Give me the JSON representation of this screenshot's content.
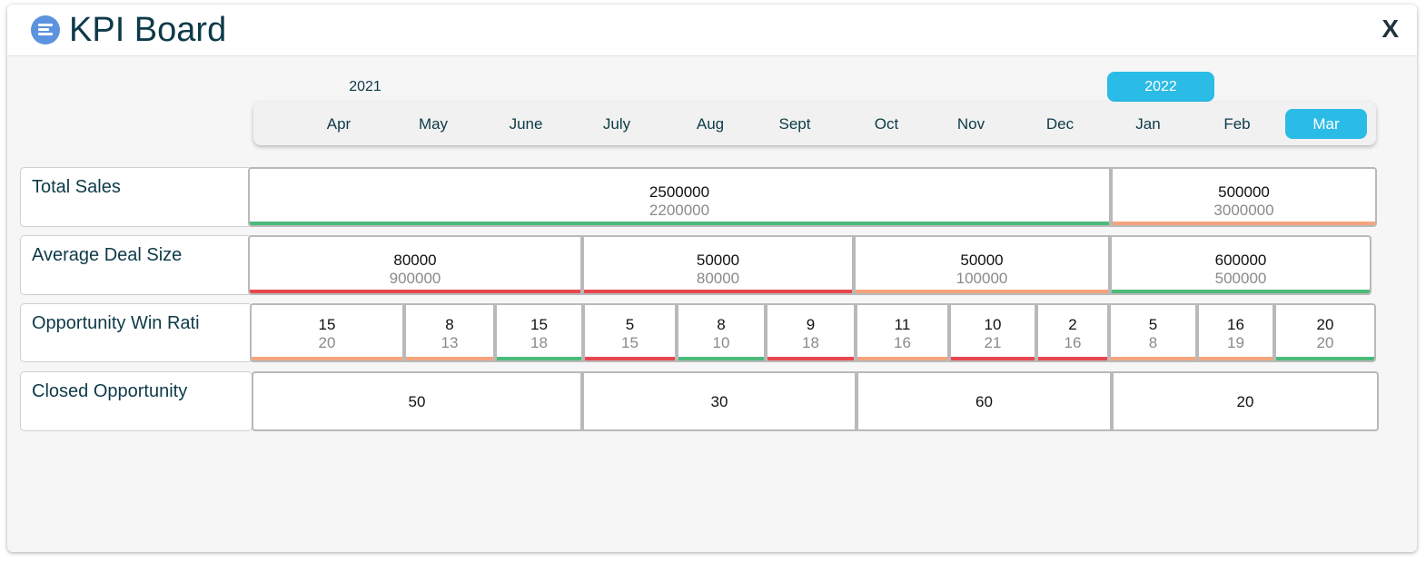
{
  "header": {
    "title": "KPI Board",
    "close_label": "X"
  },
  "years": [
    {
      "label": "2021",
      "active": false
    },
    {
      "label": "2022",
      "active": true
    }
  ],
  "months": [
    {
      "label": "Apr",
      "active": false
    },
    {
      "label": "May",
      "active": false
    },
    {
      "label": "June",
      "active": false
    },
    {
      "label": "July",
      "active": false
    },
    {
      "label": "Aug",
      "active": false
    },
    {
      "label": "Sept",
      "active": false
    },
    {
      "label": "Oct",
      "active": false
    },
    {
      "label": "Nov",
      "active": false
    },
    {
      "label": "Dec",
      "active": false
    },
    {
      "label": "Jan",
      "active": false
    },
    {
      "label": "Feb",
      "active": false
    },
    {
      "label": "Mar",
      "active": true
    }
  ],
  "colors": {
    "green": "#4cbb7a",
    "red": "#e8474f",
    "orange": "#f5a47c",
    "accent": "#2bbbe7"
  },
  "kpis": [
    {
      "label": "Total Sales",
      "cells": [
        {
          "actual": "2500000",
          "target": "2200000",
          "status": "green"
        },
        {
          "actual": "500000",
          "target": "3000000",
          "status": "orange"
        }
      ]
    },
    {
      "label": "Average Deal Size",
      "cells": [
        {
          "actual": "80000",
          "target": "900000",
          "status": "red"
        },
        {
          "actual": "50000",
          "target": "80000",
          "status": "red"
        },
        {
          "actual": "50000",
          "target": "100000",
          "status": "orange"
        },
        {
          "actual": "600000",
          "target": "500000",
          "status": "green"
        }
      ]
    },
    {
      "label": "Opportunity Win Rati",
      "cells": [
        {
          "actual": "15",
          "target": "20",
          "status": "orange"
        },
        {
          "actual": "8",
          "target": "13",
          "status": "orange"
        },
        {
          "actual": "15",
          "target": "18",
          "status": "green"
        },
        {
          "actual": "5",
          "target": "15",
          "status": "red"
        },
        {
          "actual": "8",
          "target": "10",
          "status": "green"
        },
        {
          "actual": "9",
          "target": "18",
          "status": "red"
        },
        {
          "actual": "11",
          "target": "16",
          "status": "orange"
        },
        {
          "actual": "10",
          "target": "21",
          "status": "red"
        },
        {
          "actual": "2",
          "target": "16",
          "status": "red"
        },
        {
          "actual": "5",
          "target": "8",
          "status": "orange"
        },
        {
          "actual": "16",
          "target": "19",
          "status": "orange"
        },
        {
          "actual": "20",
          "target": "20",
          "status": "green"
        }
      ]
    },
    {
      "label": "Closed Opportunity",
      "cells": [
        {
          "actual": "50"
        },
        {
          "actual": "30"
        },
        {
          "actual": "60"
        },
        {
          "actual": "20"
        }
      ]
    }
  ]
}
